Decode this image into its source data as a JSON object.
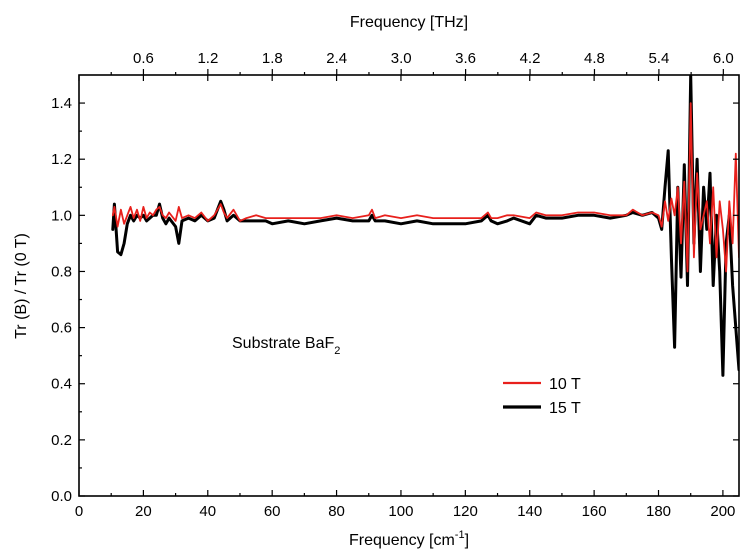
{
  "chart_data": {
    "type": "line",
    "xlabel": "Frequency [cm",
    "xlabel_sup": "-1",
    "xlabel_end": "]",
    "top_xlabel": "Frequency [THz]",
    "ylabel": "Tr (B) / Tr (0 T)",
    "annotation": {
      "text": "Substrate BaF",
      "sub": "2"
    },
    "xlim": [
      0,
      205
    ],
    "ylim": [
      0.0,
      1.5
    ],
    "x_ticks": [
      "0",
      "20",
      "40",
      "60",
      "80",
      "100",
      "120",
      "140",
      "160",
      "180",
      "200"
    ],
    "x_tick_values": [
      0,
      20,
      40,
      60,
      80,
      100,
      120,
      140,
      160,
      180,
      200
    ],
    "y_ticks": [
      "0.0",
      "0.2",
      "0.4",
      "0.6",
      "0.8",
      "1.0",
      "1.2",
      "1.4"
    ],
    "y_tick_values": [
      0.0,
      0.2,
      0.4,
      0.6,
      0.8,
      1.0,
      1.2,
      1.4
    ],
    "top_ticks": [
      "0.6",
      "1.2",
      "1.8",
      "2.4",
      "3.0",
      "3.6",
      "4.2",
      "4.8",
      "5.4",
      "6.0"
    ],
    "top_tick_values": [
      0.6,
      1.2,
      1.8,
      2.4,
      3.0,
      3.6,
      4.2,
      4.8,
      5.4,
      6.0
    ],
    "legend_position": "center-right",
    "series": [
      {
        "name": "10 T",
        "color": "#e8201c",
        "x": [
          10.5,
          11,
          12,
          13,
          14,
          15,
          16,
          17,
          18,
          19,
          20,
          21,
          22,
          23,
          24,
          25,
          26,
          27,
          28,
          30,
          31,
          32,
          34,
          36,
          38,
          40,
          42,
          44,
          45,
          46,
          48,
          50,
          52,
          55,
          58,
          60,
          65,
          70,
          75,
          80,
          85,
          90,
          91,
          92,
          95,
          100,
          105,
          110,
          115,
          120,
          125,
          127,
          128,
          130,
          133,
          135,
          140,
          142,
          145,
          150,
          155,
          160,
          165,
          170,
          172,
          175,
          178,
          180,
          181,
          182,
          183,
          184,
          185,
          186,
          187,
          188,
          189,
          190,
          191,
          192,
          193,
          194,
          195,
          196,
          197,
          198,
          199,
          200,
          201,
          202,
          203,
          204,
          205
        ],
        "y": [
          1.0,
          1.03,
          0.96,
          1.02,
          0.97,
          1.0,
          1.03,
          0.99,
          1.02,
          0.98,
          1.03,
          0.99,
          1.01,
          1.0,
          1.02,
          1.03,
          1.0,
          0.99,
          1.01,
          0.98,
          1.03,
          0.99,
          1.0,
          0.99,
          1.01,
          0.98,
          1.0,
          1.04,
          1.01,
          0.99,
          1.02,
          0.98,
          0.99,
          1.0,
          0.99,
          0.99,
          0.99,
          0.99,
          0.99,
          1.0,
          0.99,
          1.0,
          1.02,
          0.99,
          1.0,
          0.99,
          1.0,
          0.99,
          0.99,
          0.99,
          0.99,
          1.01,
          0.99,
          0.99,
          1.0,
          1.0,
          0.99,
          1.01,
          1.0,
          1.0,
          1.01,
          1.01,
          1.0,
          1.0,
          1.02,
          1.0,
          1.01,
          1.0,
          0.96,
          1.05,
          0.98,
          1.06,
          1.0,
          1.1,
          0.9,
          1.12,
          0.8,
          1.4,
          0.85,
          1.15,
          0.95,
          1.0,
          1.05,
          0.9,
          1.1,
          0.85,
          1.05,
          0.95,
          0.8,
          1.05,
          0.9,
          1.22,
          0.85
        ]
      },
      {
        "name": "15 T",
        "color": "#000000",
        "x": [
          10.5,
          11,
          12,
          13,
          14,
          15,
          16,
          17,
          18,
          19,
          20,
          21,
          22,
          23,
          24,
          25,
          26,
          27,
          28,
          30,
          31,
          32,
          34,
          36,
          38,
          40,
          42,
          44,
          45,
          46,
          48,
          50,
          52,
          55,
          58,
          60,
          65,
          70,
          75,
          80,
          85,
          90,
          91,
          92,
          95,
          100,
          105,
          110,
          115,
          120,
          125,
          127,
          128,
          130,
          133,
          135,
          140,
          142,
          145,
          150,
          155,
          160,
          165,
          170,
          172,
          175,
          178,
          180,
          181,
          182,
          183,
          184,
          185,
          186,
          187,
          188,
          189,
          190,
          191,
          192,
          193,
          194,
          195,
          196,
          197,
          198,
          199,
          200,
          201,
          202,
          203,
          204,
          205
        ],
        "y": [
          0.95,
          1.04,
          0.87,
          0.86,
          0.9,
          0.97,
          1.0,
          0.98,
          1.0,
          0.99,
          1.0,
          0.98,
          0.99,
          1.0,
          1.0,
          1.04,
          0.99,
          0.97,
          0.99,
          0.96,
          0.9,
          0.98,
          0.99,
          0.98,
          1.0,
          0.98,
          0.99,
          1.05,
          1.02,
          0.98,
          1.0,
          0.98,
          0.98,
          0.98,
          0.98,
          0.97,
          0.98,
          0.97,
          0.98,
          0.99,
          0.98,
          0.98,
          1.0,
          0.98,
          0.98,
          0.97,
          0.98,
          0.97,
          0.97,
          0.97,
          0.98,
          1.0,
          0.98,
          0.97,
          0.98,
          0.99,
          0.97,
          1.0,
          0.99,
          0.99,
          1.0,
          1.0,
          0.99,
          1.0,
          1.01,
          1.0,
          1.01,
          0.99,
          0.95,
          1.1,
          1.23,
          0.85,
          0.53,
          1.1,
          0.78,
          1.18,
          0.75,
          1.5,
          0.9,
          1.2,
          0.8,
          1.1,
          0.95,
          1.15,
          0.75,
          1.0,
          0.8,
          0.43,
          0.9,
          1.0,
          0.75,
          0.6,
          0.45
        ]
      }
    ]
  }
}
